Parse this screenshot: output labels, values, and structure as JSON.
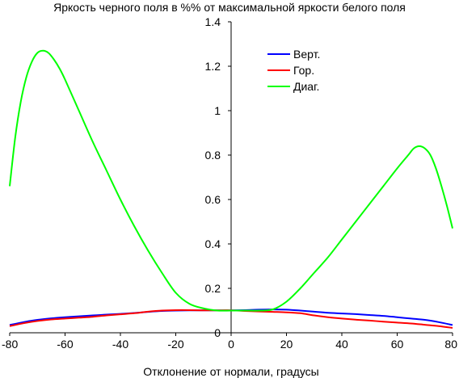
{
  "chart_data": {
    "type": "line",
    "title": "Яркость черного поля в %% от максимальной яркости белого поля",
    "xlabel": "Отклонение от нормали, градусы",
    "ylabel": "",
    "xlim": [
      -80,
      80
    ],
    "ylim": [
      0,
      1.4
    ],
    "x_ticks": [
      "-80",
      "-60",
      "-40",
      "-20",
      "0",
      "20",
      "40",
      "60",
      "80"
    ],
    "y_ticks": [
      "0",
      "0.2",
      "0.4",
      "0.6",
      "0.8",
      "1",
      "1.2",
      "1.4"
    ],
    "grid": false,
    "legend_position": "top-center",
    "series": [
      {
        "name": "Верт.",
        "color": "#0000ff",
        "x": [
          -80,
          -75,
          -70,
          -65,
          -60,
          -55,
          -50,
          -45,
          -40,
          -35,
          -30,
          -25,
          -20,
          -15,
          -10,
          -5,
          0,
          5,
          10,
          15,
          20,
          25,
          30,
          35,
          40,
          45,
          50,
          55,
          60,
          65,
          70,
          75,
          80
        ],
        "y": [
          0.035,
          0.048,
          0.058,
          0.065,
          0.07,
          0.074,
          0.078,
          0.082,
          0.085,
          0.089,
          0.094,
          0.098,
          0.1,
          0.101,
          0.101,
          0.101,
          0.101,
          0.102,
          0.104,
          0.105,
          0.104,
          0.1,
          0.095,
          0.09,
          0.087,
          0.084,
          0.08,
          0.076,
          0.07,
          0.064,
          0.058,
          0.048,
          0.035
        ]
      },
      {
        "name": "Гор.",
        "color": "#ff0000",
        "x": [
          -80,
          -75,
          -70,
          -65,
          -60,
          -55,
          -50,
          -45,
          -40,
          -35,
          -30,
          -25,
          -20,
          -15,
          -10,
          -5,
          0,
          5,
          10,
          15,
          20,
          25,
          30,
          35,
          40,
          45,
          50,
          55,
          60,
          65,
          70,
          75,
          80
        ],
        "y": [
          0.03,
          0.043,
          0.053,
          0.06,
          0.064,
          0.068,
          0.072,
          0.078,
          0.083,
          0.088,
          0.095,
          0.1,
          0.102,
          0.102,
          0.101,
          0.101,
          0.101,
          0.098,
          0.096,
          0.094,
          0.092,
          0.088,
          0.078,
          0.07,
          0.064,
          0.059,
          0.055,
          0.05,
          0.046,
          0.042,
          0.036,
          0.03,
          0.022
        ]
      },
      {
        "name": "Диаг.",
        "color": "#00ff00",
        "x": [
          -80,
          -78,
          -76,
          -74,
          -72,
          -70,
          -68,
          -66,
          -64,
          -62,
          -60,
          -55,
          -50,
          -45,
          -40,
          -35,
          -30,
          -25,
          -20,
          -15,
          -10,
          -5,
          0,
          5,
          10,
          15,
          20,
          25,
          30,
          35,
          40,
          45,
          50,
          55,
          60,
          64,
          66,
          68,
          70,
          72,
          74,
          76,
          78,
          80
        ],
        "y": [
          0.66,
          0.88,
          1.04,
          1.15,
          1.22,
          1.26,
          1.27,
          1.26,
          1.23,
          1.19,
          1.14,
          1.0,
          0.86,
          0.73,
          0.6,
          0.48,
          0.37,
          0.27,
          0.18,
          0.13,
          0.11,
          0.1,
          0.1,
          0.1,
          0.1,
          0.105,
          0.14,
          0.2,
          0.27,
          0.34,
          0.42,
          0.5,
          0.58,
          0.66,
          0.74,
          0.8,
          0.83,
          0.84,
          0.83,
          0.8,
          0.74,
          0.66,
          0.57,
          0.47
        ]
      }
    ]
  }
}
